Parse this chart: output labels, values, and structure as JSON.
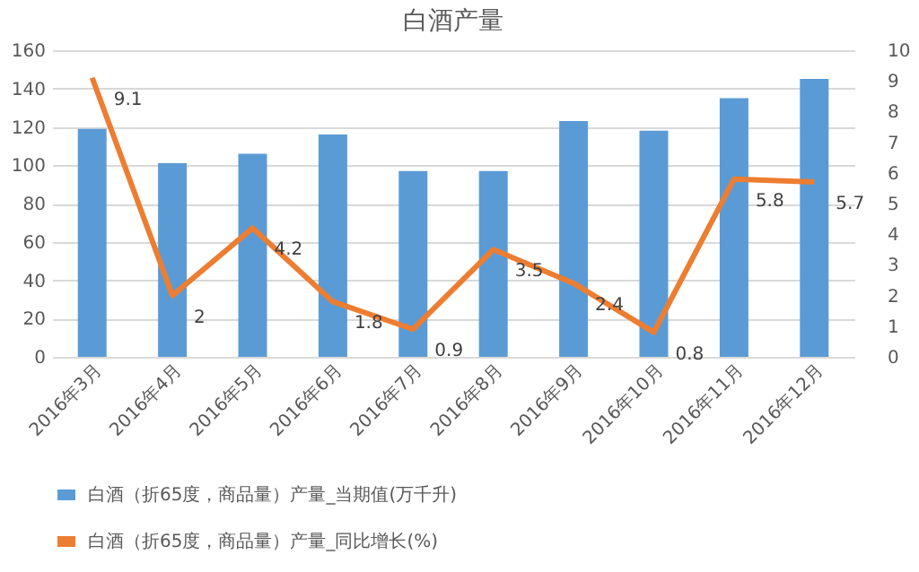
{
  "chart_data": {
    "type": "bar",
    "title": "白酒产量",
    "categories": [
      "2016年3月",
      "2016年4月",
      "2016年5月",
      "2016年6月",
      "2016年7月",
      "2016年8月",
      "2016年9月",
      "2016年10月",
      "2016年11月",
      "2016年12月"
    ],
    "series": [
      {
        "name": "白酒（折65度，商品量）产量_当期值(万千升)",
        "color": "#5b9bd5",
        "values": [
          119,
          101,
          106,
          116,
          97,
          97,
          123,
          118,
          135,
          145
        ]
      },
      {
        "name": "白酒（折65度，商品量）产量_同比增长(%)",
        "color": "#ed7d31",
        "type": "line",
        "axis": "y2",
        "data_labels": true,
        "values": [
          9.1,
          2,
          4.2,
          1.8,
          0.9,
          3.5,
          2.4,
          0.8,
          5.8,
          5.7
        ]
      }
    ],
    "ylim": [
      0,
      160
    ],
    "yticks": [
      0,
      20,
      40,
      60,
      80,
      100,
      120,
      140,
      160
    ],
    "y2lim": [
      0,
      10
    ],
    "y2ticks": [
      0,
      1,
      2,
      3,
      4,
      5,
      6,
      7,
      8,
      9,
      10
    ],
    "grid": "y",
    "legend": "bottom"
  }
}
